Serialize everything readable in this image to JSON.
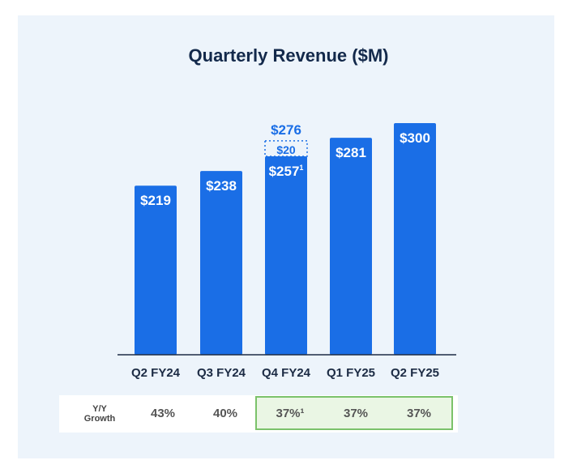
{
  "chart_data": {
    "type": "bar",
    "title": "Quarterly Revenue ($M)",
    "categories": [
      "Q2 FY24",
      "Q3 FY24",
      "Q4 FY24",
      "Q1 FY25",
      "Q2 FY25"
    ],
    "values": [
      219,
      238,
      257,
      281,
      300
    ],
    "value_labels": [
      "$219",
      "$238",
      "$257",
      "$281",
      "$300"
    ],
    "footnote_marks": [
      "",
      "",
      "1",
      "",
      ""
    ],
    "adjustment": {
      "category": "Q4 FY24",
      "value": 20,
      "label": "$20",
      "total_label": "$276",
      "style": "dashed"
    },
    "ylim": [
      0,
      300
    ],
    "growth": {
      "label_line1": "Y/Y",
      "label_line2": "Growth",
      "values": [
        "43%",
        "40%",
        "37%¹",
        "37%",
        "37%"
      ],
      "highlighted": [
        2,
        3,
        4
      ]
    },
    "colors": {
      "bar": "#1a6ee6",
      "title": "#13294b",
      "highlight_border": "#7bc26a",
      "highlight_fill": "#eaf6e4"
    }
  }
}
